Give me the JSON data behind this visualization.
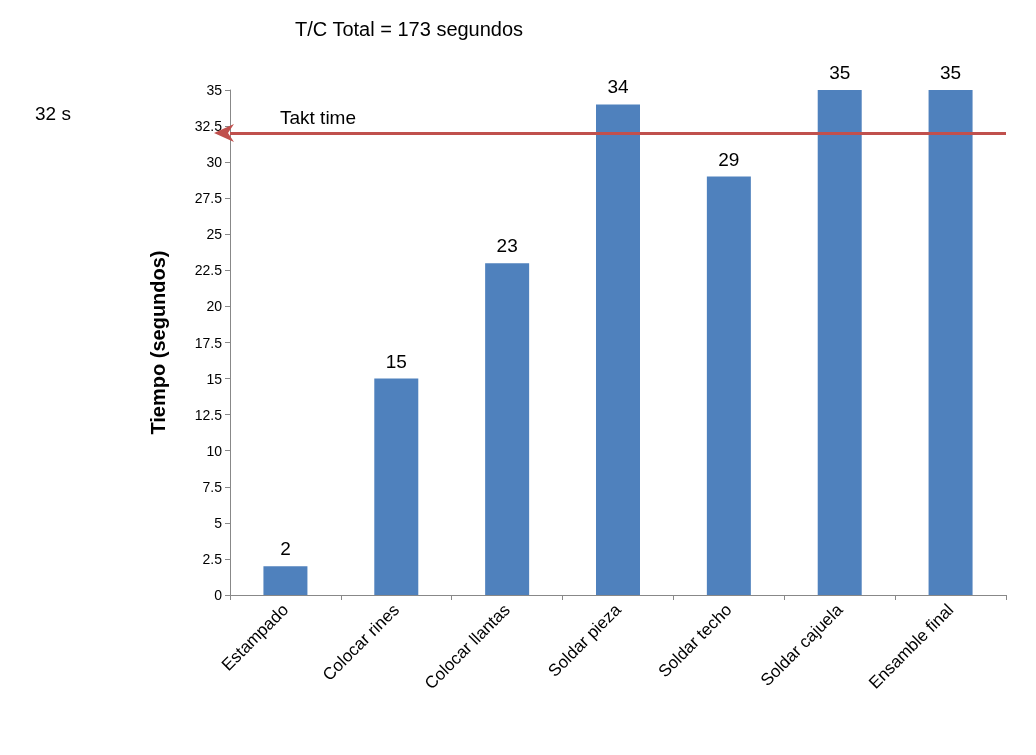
{
  "chart_data": {
    "type": "bar",
    "title": "T/C Total = 173 segundos",
    "ylabel": "Tiempo (segundos)",
    "categories": [
      "Estampado",
      "Colocar rines",
      "Colocar llantas",
      "Soldar pieza",
      "Soldar techo",
      "Soldar cajuela",
      "Ensamble final"
    ],
    "values": [
      2,
      15,
      23,
      34,
      29,
      35,
      35
    ],
    "color": "#4f81bd",
    "data_labels": true,
    "ylim": [
      0,
      35
    ],
    "yticks": [
      0,
      2.5,
      5,
      7.5,
      10,
      12.5,
      15,
      17.5,
      20,
      22.5,
      25,
      27.5,
      30,
      32.5,
      35
    ],
    "grid": false,
    "ref_lines": [
      {
        "axis": "y",
        "value": 32,
        "label": "Takt time",
        "color": "#c0504d",
        "line_style": "solid"
      }
    ],
    "annotations": [
      "32 s"
    ]
  }
}
